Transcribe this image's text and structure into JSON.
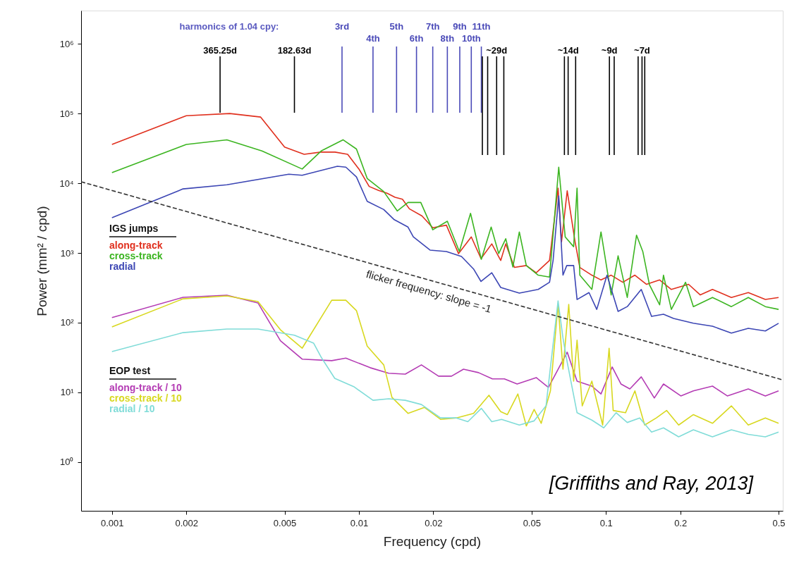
{
  "chart_data": {
    "type": "line",
    "xlabel": "Frequency (cpd)",
    "ylabel": "Power (mm² / cpd)",
    "log": "xy",
    "grid": false,
    "legend": "left",
    "xlim": [
      0.00075,
      0.52
    ],
    "ylim": [
      0.2,
      3000000
    ],
    "xticks": [
      0.001,
      0.002,
      0.005,
      0.01,
      0.02,
      0.05,
      0.1,
      0.2,
      0.5
    ],
    "yticks": [
      {
        "value": 1,
        "label": "10⁰"
      },
      {
        "value": 10,
        "label": "10¹"
      },
      {
        "value": 100,
        "label": "10²"
      },
      {
        "value": 1000,
        "label": "10³"
      },
      {
        "value": 10000,
        "label": "10⁴"
      },
      {
        "value": 100000,
        "label": "10⁵"
      },
      {
        "value": 1000000,
        "label": "10⁶"
      }
    ],
    "annotations": [
      "harmonics of 1.04 cpy:",
      "IGS jumps",
      "EOP test",
      "[Griffiths and Ray, 2013]"
    ],
    "series": [
      {
        "name": "along-track",
        "color": "#e0301e",
        "x": [
          0.001,
          0.002,
          0.003,
          0.004,
          0.005,
          0.006,
          0.007,
          0.008,
          0.009,
          0.01,
          0.011,
          0.012,
          0.013,
          0.014,
          0.015,
          0.016,
          0.018,
          0.0199,
          0.0226,
          0.0253,
          0.0285,
          0.0312,
          0.0345,
          0.0375,
          0.0393,
          0.0426,
          0.0476,
          0.0522,
          0.0591,
          0.064,
          0.0661,
          0.0697,
          0.075,
          0.0784,
          0.0877,
          0.0955,
          0.105,
          0.117,
          0.131,
          0.146,
          0.165,
          0.184,
          0.216,
          0.241,
          0.27,
          0.322,
          0.377,
          0.442,
          0.5
        ],
        "values": [
          36000,
          93000,
          100000,
          89000,
          33000,
          26000,
          28000,
          28000,
          26000,
          16000,
          9000,
          7900,
          7200,
          6300,
          5900,
          4300,
          3400,
          2300,
          2500,
          980,
          1700,
          830,
          1350,
          780,
          1350,
          620,
          660,
          520,
          780,
          8500,
          1450,
          7800,
          1450,
          620,
          480,
          410,
          480,
          380,
          480,
          355,
          410,
          300,
          355,
          250,
          300,
          230,
          270,
          215,
          230
        ]
      },
      {
        "name": "cross-track",
        "color": "#3cb521",
        "x": [
          0.001,
          0.002,
          0.00292,
          0.00405,
          0.00589,
          0.00703,
          0.00862,
          0.00977,
          0.0108,
          0.0126,
          0.0143,
          0.0158,
          0.0178,
          0.0199,
          0.0228,
          0.0255,
          0.0283,
          0.0313,
          0.0343,
          0.0368,
          0.0393,
          0.042,
          0.0446,
          0.0476,
          0.0532,
          0.0591,
          0.0644,
          0.0684,
          0.074,
          0.0764,
          0.0784,
          0.0877,
          0.0955,
          0.105,
          0.112,
          0.122,
          0.133,
          0.141,
          0.15,
          0.165,
          0.171,
          0.184,
          0.21,
          0.226,
          0.27,
          0.322,
          0.377,
          0.442,
          0.5
        ],
        "values": [
          14200,
          36000,
          42000,
          29000,
          16000,
          29000,
          42000,
          31000,
          11700,
          7600,
          4000,
          5300,
          5300,
          2150,
          2850,
          1050,
          3700,
          810,
          2350,
          980,
          1600,
          630,
          2000,
          660,
          480,
          450,
          17000,
          1700,
          1230,
          8500,
          480,
          300,
          2000,
          250,
          910,
          230,
          1800,
          1050,
          350,
          180,
          480,
          155,
          380,
          170,
          230,
          170,
          230,
          170,
          155
        ]
      },
      {
        "name": "radial",
        "color": "#3c46b4",
        "x": [
          0.001,
          0.00194,
          0.00292,
          0.0052,
          0.00589,
          0.00818,
          0.00885,
          0.00977,
          0.0108,
          0.0126,
          0.0139,
          0.0158,
          0.0166,
          0.0194,
          0.0226,
          0.026,
          0.0291,
          0.0312,
          0.0345,
          0.0375,
          0.0446,
          0.0532,
          0.0591,
          0.0611,
          0.0644,
          0.067,
          0.0694,
          0.074,
          0.0764,
          0.0854,
          0.0918,
          0.101,
          0.112,
          0.122,
          0.139,
          0.153,
          0.171,
          0.188,
          0.226,
          0.27,
          0.322,
          0.377,
          0.442,
          0.5
        ],
        "values": [
          3200,
          8300,
          9500,
          13500,
          13000,
          17500,
          17000,
          12300,
          5500,
          4200,
          3000,
          2350,
          1700,
          1100,
          1050,
          890,
          590,
          390,
          520,
          320,
          265,
          300,
          380,
          780,
          6600,
          480,
          660,
          660,
          215,
          270,
          155,
          480,
          145,
          170,
          300,
          123,
          132,
          115,
          98,
          89,
          71,
          83,
          76,
          98
        ]
      },
      {
        "name": "along-track / 10",
        "color": "#b43cb4",
        "x": [
          0.001,
          0.00194,
          0.00292,
          0.0039,
          0.00481,
          0.00589,
          0.00776,
          0.00885,
          0.0111,
          0.0132,
          0.0154,
          0.0179,
          0.021,
          0.0237,
          0.0265,
          0.0305,
          0.0347,
          0.0388,
          0.0437,
          0.0522,
          0.0585,
          0.0697,
          0.0764,
          0.0877,
          0.0955,
          0.106,
          0.115,
          0.125,
          0.139,
          0.157,
          0.171,
          0.201,
          0.226,
          0.27,
          0.31,
          0.377,
          0.442,
          0.5
        ],
        "values": [
          118,
          231,
          248,
          192,
          55,
          30,
          28.5,
          31,
          22.6,
          18.8,
          18.3,
          24.8,
          17.1,
          17.1,
          21.5,
          19.2,
          15.6,
          15.6,
          13.2,
          16.3,
          11.8,
          37.7,
          14.5,
          12.3,
          9.5,
          23.1,
          13.2,
          11.2,
          16.7,
          8.3,
          13.2,
          8.9,
          10.5,
          12.3,
          8.9,
          11.2,
          8.9,
          10.5
        ]
      },
      {
        "name": "cross-track / 10",
        "color": "#d8d820",
        "x": [
          0.001,
          0.00194,
          0.00292,
          0.0039,
          0.00481,
          0.00589,
          0.00776,
          0.00885,
          0.00977,
          0.0108,
          0.0126,
          0.0136,
          0.0158,
          0.0184,
          0.0214,
          0.0248,
          0.0291,
          0.0336,
          0.0375,
          0.0399,
          0.044,
          0.0476,
          0.0512,
          0.0547,
          0.0596,
          0.064,
          0.067,
          0.0707,
          0.074,
          0.0764,
          0.0802,
          0.0877,
          0.097,
          0.103,
          0.107,
          0.12,
          0.131,
          0.1435,
          0.16,
          0.176,
          0.197,
          0.226,
          0.27,
          0.322,
          0.377,
          0.442,
          0.5
        ],
        "values": [
          87,
          220,
          242,
          201,
          79,
          43,
          210,
          210,
          149,
          46,
          24.8,
          8.5,
          5.0,
          6.1,
          4.1,
          4.3,
          5.0,
          9.1,
          5.3,
          4.8,
          9.5,
          3.3,
          5.7,
          3.6,
          10.5,
          183,
          21.5,
          183,
          14.5,
          56,
          6.4,
          14.5,
          3.4,
          43,
          5.5,
          5.1,
          10.5,
          3.4,
          4.3,
          5.5,
          3.4,
          4.8,
          3.6,
          6.4,
          3.4,
          4.3,
          3.6
        ]
      },
      {
        "name": "radial / 10",
        "color": "#80dcd8",
        "x": [
          0.001,
          0.00194,
          0.00292,
          0.0039,
          0.00548,
          0.00655,
          0.00703,
          0.00798,
          0.00952,
          0.0114,
          0.0132,
          0.0154,
          0.0179,
          0.0214,
          0.0248,
          0.0276,
          0.0313,
          0.0345,
          0.0378,
          0.0446,
          0.0512,
          0.0572,
          0.064,
          0.067,
          0.0697,
          0.0764,
          0.0877,
          0.098,
          0.11,
          0.122,
          0.137,
          0.153,
          0.171,
          0.197,
          0.226,
          0.27,
          0.322,
          0.377,
          0.442,
          0.5
        ],
        "values": [
          38.5,
          72,
          81,
          81,
          66,
          51,
          32,
          15.9,
          12.1,
          7.7,
          8.1,
          7.7,
          6.7,
          4.3,
          4.3,
          3.8,
          5.9,
          3.8,
          4.1,
          3.4,
          3.9,
          6.4,
          205,
          60,
          27,
          5.1,
          4.0,
          3.1,
          5.1,
          3.7,
          4.3,
          2.7,
          3.1,
          2.3,
          2.9,
          2.3,
          2.9,
          2.5,
          2.3,
          2.7
        ]
      },
      {
        "name": "flicker frequency: slope = -1",
        "color": "#333333",
        "line_style": "dashed",
        "x": [
          0.00075,
          0.52
        ],
        "values": [
          10500,
          15.1
        ]
      }
    ],
    "ref_lines": [
      {
        "axis": "x",
        "value": 0.00274,
        "label": "365.25d",
        "color": "#000000"
      },
      {
        "axis": "x",
        "value": 0.00548,
        "label": "182.63d",
        "color": "#000000"
      },
      {
        "axis": "x",
        "value": 0.00854,
        "label": "3rd",
        "color": "#4a4ab8"
      },
      {
        "axis": "x",
        "value": 0.0114,
        "label": "4th",
        "color": "#4a4ab8"
      },
      {
        "axis": "x",
        "value": 0.0142,
        "label": "5th",
        "color": "#4a4ab8"
      },
      {
        "axis": "x",
        "value": 0.0171,
        "label": "6th",
        "color": "#4a4ab8"
      },
      {
        "axis": "x",
        "value": 0.0199,
        "label": "7th",
        "color": "#4a4ab8"
      },
      {
        "axis": "x",
        "value": 0.0228,
        "label": "8th",
        "color": "#4a4ab8"
      },
      {
        "axis": "x",
        "value": 0.0256,
        "label": "9th",
        "color": "#4a4ab8"
      },
      {
        "axis": "x",
        "value": 0.0285,
        "label": "10th",
        "color": "#4a4ab8"
      },
      {
        "axis": "x",
        "value": 0.0313,
        "label": "11th",
        "color": "#4a4ab8"
      },
      {
        "axis": "x",
        "value": 0.0316,
        "label": null,
        "color": "#000000"
      },
      {
        "axis": "x",
        "value": 0.0332,
        "label": null,
        "color": "#000000"
      },
      {
        "axis": "x",
        "value": 0.0361,
        "label": "~29d",
        "color": "#000000"
      },
      {
        "axis": "x",
        "value": 0.0386,
        "label": null,
        "color": "#000000"
      },
      {
        "axis": "x",
        "value": 0.0679,
        "label": null,
        "color": "#000000"
      },
      {
        "axis": "x",
        "value": 0.0703,
        "label": "~14d",
        "color": "#000000"
      },
      {
        "axis": "x",
        "value": 0.0754,
        "label": null,
        "color": "#000000"
      },
      {
        "axis": "x",
        "value": 0.1033,
        "label": "~9d",
        "color": "#000000"
      },
      {
        "axis": "x",
        "value": 0.108,
        "label": null,
        "color": "#000000"
      },
      {
        "axis": "x",
        "value": 0.135,
        "label": null,
        "color": "#000000"
      },
      {
        "axis": "x",
        "value": 0.14,
        "label": "~7d",
        "color": "#000000"
      },
      {
        "axis": "x",
        "value": 0.1436,
        "label": null,
        "color": "#000000"
      }
    ]
  }
}
